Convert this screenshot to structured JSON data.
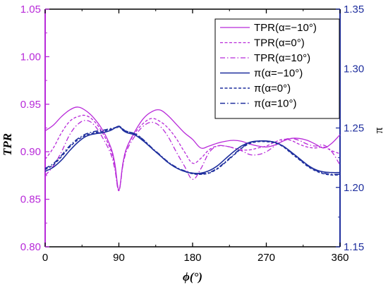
{
  "chart_data": {
    "type": "line",
    "xlabel": "ϕ(°)",
    "ylabel_left": "TPR",
    "ylabel_right": "π",
    "xlim": [
      0,
      360
    ],
    "ylim_left": [
      0.8,
      1.05
    ],
    "ylim_right": [
      1.15,
      1.35
    ],
    "x_ticks": [
      "0",
      "90",
      "180",
      "270",
      "360"
    ],
    "y_ticks_left": [
      "0.80",
      "0.85",
      "0.90",
      "0.95",
      "1.00",
      "1.05"
    ],
    "y_ticks_right": [
      "1.15",
      "1.20",
      "1.25",
      "1.30",
      "1.35"
    ],
    "grid": false,
    "legend_position": "top-right",
    "colors": {
      "left_axis": "#b82ad9",
      "right_axis": "#1f2f9e"
    },
    "series": [
      {
        "name": "TPR(α=−10°)",
        "axis": "left",
        "style": "solid",
        "color": "#b82ad9",
        "x": [
          0,
          10,
          20,
          30,
          40,
          50,
          60,
          70,
          80,
          85,
          90,
          95,
          100,
          110,
          120,
          130,
          140,
          150,
          160,
          170,
          180,
          190,
          200,
          210,
          220,
          230,
          240,
          250,
          260,
          270,
          280,
          290,
          300,
          310,
          320,
          330,
          340,
          350,
          360
        ],
        "y": [
          0.922,
          0.928,
          0.937,
          0.944,
          0.947,
          0.943,
          0.935,
          0.923,
          0.905,
          0.888,
          0.86,
          0.888,
          0.905,
          0.922,
          0.935,
          0.942,
          0.944,
          0.938,
          0.929,
          0.92,
          0.913,
          0.904,
          0.906,
          0.909,
          0.911,
          0.912,
          0.911,
          0.908,
          0.906,
          0.905,
          0.907,
          0.911,
          0.914,
          0.914,
          0.912,
          0.908,
          0.904,
          0.909,
          0.918
        ]
      },
      {
        "name": "TPR(α=0°)",
        "axis": "left",
        "style": "dashed",
        "color": "#b82ad9",
        "x": [
          0,
          10,
          20,
          30,
          40,
          50,
          60,
          70,
          80,
          85,
          90,
          95,
          100,
          110,
          120,
          130,
          140,
          150,
          160,
          170,
          180,
          190,
          200,
          210,
          220,
          230,
          240,
          250,
          260,
          270,
          280,
          290,
          300,
          310,
          320,
          330,
          340,
          350,
          360
        ],
        "y": [
          0.892,
          0.904,
          0.92,
          0.932,
          0.937,
          0.938,
          0.932,
          0.92,
          0.902,
          0.885,
          0.859,
          0.888,
          0.905,
          0.92,
          0.93,
          0.935,
          0.932,
          0.925,
          0.914,
          0.9,
          0.888,
          0.893,
          0.902,
          0.906,
          0.906,
          0.904,
          0.902,
          0.902,
          0.904,
          0.906,
          0.91,
          0.913,
          0.912,
          0.908,
          0.905,
          0.904,
          0.905,
          0.901,
          0.898
        ]
      },
      {
        "name": "TPR(α=10°)",
        "axis": "left",
        "style": "dashdot",
        "color": "#b82ad9",
        "x": [
          0,
          10,
          20,
          30,
          40,
          50,
          60,
          70,
          80,
          85,
          90,
          95,
          100,
          110,
          120,
          130,
          140,
          150,
          160,
          170,
          180,
          190,
          200,
          210,
          220,
          230,
          240,
          250,
          260,
          270,
          280,
          290,
          300,
          310,
          320,
          330,
          340,
          350,
          360
        ],
        "y": [
          0.875,
          0.885,
          0.9,
          0.918,
          0.929,
          0.933,
          0.928,
          0.915,
          0.898,
          0.882,
          0.859,
          0.886,
          0.902,
          0.917,
          0.927,
          0.931,
          0.927,
          0.916,
          0.9,
          0.885,
          0.871,
          0.882,
          0.899,
          0.906,
          0.906,
          0.904,
          0.901,
          0.897,
          0.897,
          0.9,
          0.906,
          0.912,
          0.914,
          0.912,
          0.908,
          0.906,
          0.907,
          0.9,
          0.886
        ]
      },
      {
        "name": "π(α=−10°)",
        "axis": "right",
        "style": "solid",
        "color": "#1f2f9e",
        "x": [
          0,
          10,
          20,
          30,
          40,
          50,
          60,
          70,
          80,
          90,
          95,
          100,
          110,
          120,
          130,
          140,
          150,
          160,
          170,
          180,
          190,
          200,
          210,
          220,
          230,
          240,
          250,
          260,
          270,
          280,
          290,
          300,
          310,
          320,
          330,
          340,
          350,
          360
        ],
        "y": [
          1.2135,
          1.217,
          1.223,
          1.231,
          1.238,
          1.243,
          1.245,
          1.246,
          1.248,
          1.2515,
          1.248,
          1.246,
          1.244,
          1.239,
          1.233,
          1.227,
          1.221,
          1.2165,
          1.2135,
          1.212,
          1.212,
          1.214,
          1.218,
          1.224,
          1.23,
          1.235,
          1.238,
          1.239,
          1.239,
          1.238,
          1.235,
          1.23,
          1.2245,
          1.219,
          1.215,
          1.213,
          1.2125,
          1.2125
        ]
      },
      {
        "name": "π(α=0°)",
        "axis": "right",
        "style": "dashed",
        "color": "#1f2f9e",
        "x": [
          0,
          10,
          20,
          30,
          40,
          50,
          60,
          70,
          80,
          90,
          95,
          100,
          110,
          120,
          130,
          140,
          150,
          160,
          170,
          180,
          190,
          200,
          210,
          220,
          230,
          240,
          250,
          260,
          270,
          280,
          290,
          300,
          310,
          320,
          330,
          340,
          350,
          360
        ],
        "y": [
          1.215,
          1.219,
          1.226,
          1.234,
          1.24,
          1.244,
          1.246,
          1.247,
          1.249,
          1.251,
          1.249,
          1.247,
          1.245,
          1.24,
          1.233,
          1.227,
          1.221,
          1.2165,
          1.2135,
          1.2115,
          1.211,
          1.212,
          1.2155,
          1.221,
          1.227,
          1.233,
          1.237,
          1.2385,
          1.2385,
          1.2375,
          1.2345,
          1.229,
          1.2235,
          1.218,
          1.214,
          1.2115,
          1.2105,
          1.2105
        ]
      },
      {
        "name": "π(α=10°)",
        "axis": "right",
        "style": "dashdot",
        "color": "#1f2f9e",
        "x": [
          0,
          10,
          20,
          30,
          40,
          50,
          60,
          70,
          80,
          90,
          95,
          100,
          110,
          120,
          130,
          140,
          150,
          160,
          170,
          180,
          190,
          200,
          210,
          220,
          230,
          240,
          250,
          260,
          270,
          280,
          290,
          300,
          310,
          320,
          330,
          340,
          350,
          360
        ],
        "y": [
          1.216,
          1.22,
          1.227,
          1.235,
          1.241,
          1.245,
          1.247,
          1.248,
          1.2495,
          1.2505,
          1.2485,
          1.247,
          1.245,
          1.24,
          1.2335,
          1.2275,
          1.2215,
          1.217,
          1.214,
          1.212,
          1.2115,
          1.2125,
          1.216,
          1.2215,
          1.2275,
          1.2335,
          1.2375,
          1.239,
          1.239,
          1.238,
          1.235,
          1.2295,
          1.224,
          1.2185,
          1.2145,
          1.212,
          1.211,
          1.211
        ]
      }
    ]
  }
}
